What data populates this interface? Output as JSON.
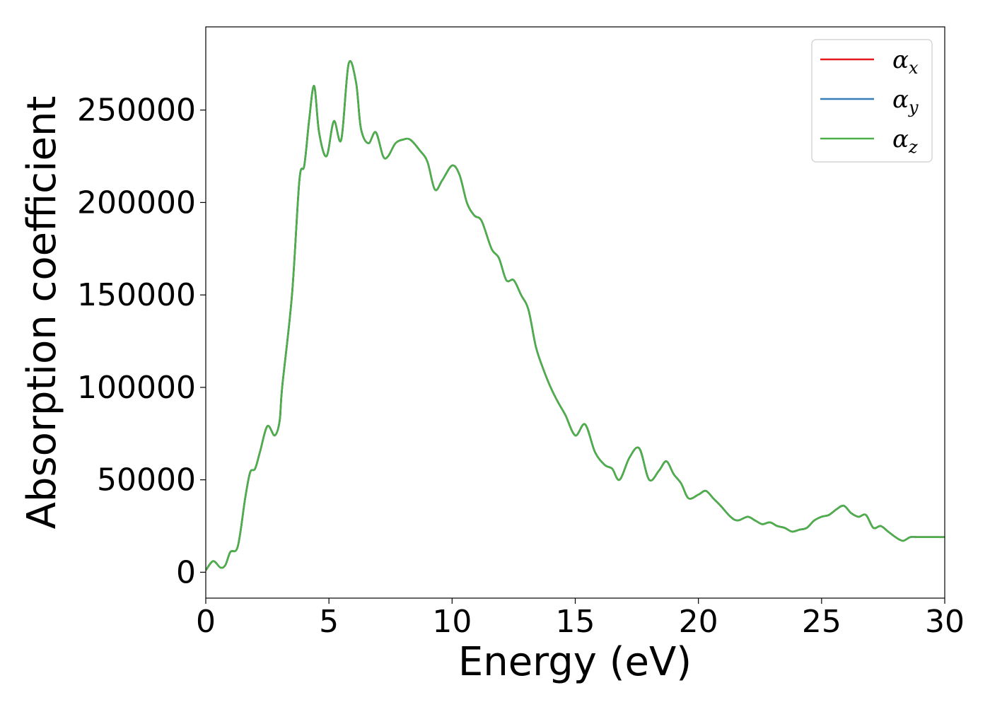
{
  "chart_data": {
    "type": "line",
    "title": "",
    "xlabel": "Energy (eV)",
    "ylabel": "Absorption coefficient",
    "xlim": [
      0,
      30
    ],
    "ylim": [
      -14000,
      295000
    ],
    "grid": false,
    "legend_position": "top-right",
    "x_ticks": [
      {
        "value": 0,
        "label": "0"
      },
      {
        "value": 5,
        "label": "5"
      },
      {
        "value": 10,
        "label": "10"
      },
      {
        "value": 15,
        "label": "15"
      },
      {
        "value": 20,
        "label": "20"
      },
      {
        "value": 25,
        "label": "25"
      },
      {
        "value": 30,
        "label": "30"
      }
    ],
    "y_ticks": [
      {
        "value": 0,
        "label": "0"
      },
      {
        "value": 50000,
        "label": "50000"
      },
      {
        "value": 100000,
        "label": "100000"
      },
      {
        "value": 150000,
        "label": "150000"
      },
      {
        "value": 200000,
        "label": "200000"
      },
      {
        "value": 250000,
        "label": "250000"
      }
    ],
    "x": [
      0,
      0.3,
      0.6,
      0.8,
      1.0,
      1.3,
      1.6,
      1.8,
      2.0,
      2.2,
      2.5,
      2.8,
      3.0,
      3.1,
      3.5,
      3.8,
      4.0,
      4.2,
      4.4,
      4.6,
      4.9,
      5.2,
      5.5,
      5.8,
      6.1,
      6.3,
      6.6,
      6.9,
      7.2,
      7.4,
      7.7,
      8.0,
      8.3,
      8.7,
      9.0,
      9.3,
      9.6,
      10.0,
      10.3,
      10.6,
      10.9,
      11.2,
      11.6,
      11.9,
      12.2,
      12.5,
      12.8,
      13.1,
      13.4,
      13.7,
      14.0,
      14.3,
      14.6,
      15.0,
      15.4,
      15.8,
      16.2,
      16.5,
      16.8,
      17.2,
      17.6,
      18.0,
      18.4,
      18.7,
      19.0,
      19.3,
      19.6,
      20.0,
      20.3,
      20.6,
      20.9,
      21.3,
      21.6,
      22.0,
      22.3,
      22.6,
      22.9,
      23.2,
      23.5,
      23.8,
      24.1,
      24.4,
      24.7,
      25.0,
      25.3,
      25.6,
      25.9,
      26.2,
      26.5,
      26.8,
      27.1,
      27.4,
      27.7,
      28.0,
      28.3,
      28.6,
      28.9,
      29.2,
      29.5,
      29.8,
      30.0
    ],
    "series": [
      {
        "name": "x",
        "color": "#e41a1c",
        "values": [
          1000,
          6000,
          2500,
          4000,
          11000,
          14000,
          40000,
          54000,
          56000,
          65000,
          79000,
          74000,
          82000,
          100000,
          150000,
          212000,
          220000,
          245000,
          263000,
          238000,
          225000,
          244000,
          234000,
          275000,
          265000,
          240000,
          232000,
          238000,
          225000,
          225000,
          232000,
          234000,
          234000,
          228000,
          222000,
          207000,
          212000,
          220000,
          215000,
          200000,
          193000,
          190000,
          175000,
          170000,
          158000,
          158000,
          150000,
          142000,
          122000,
          110000,
          100000,
          92000,
          85000,
          74000,
          80000,
          65000,
          58000,
          56000,
          50000,
          62000,
          67000,
          50000,
          55000,
          60000,
          53000,
          48000,
          40000,
          42000,
          44000,
          40000,
          36000,
          30000,
          28000,
          30000,
          28000,
          26000,
          27000,
          25000,
          24000,
          22000,
          23000,
          24000,
          28000,
          30000,
          31000,
          34000,
          36000,
          32000,
          30000,
          31000,
          24000,
          25000,
          22000,
          19000,
          17000,
          19000,
          19000,
          19000,
          19000,
          19000,
          19000
        ]
      },
      {
        "name": "y",
        "color": "#377eb8",
        "values": [
          1000,
          6000,
          2500,
          4000,
          11000,
          14000,
          40000,
          54000,
          56000,
          65000,
          79000,
          74000,
          82000,
          100000,
          150000,
          212000,
          220000,
          245000,
          263000,
          238000,
          225000,
          244000,
          234000,
          275000,
          265000,
          240000,
          232000,
          238000,
          225000,
          225000,
          232000,
          234000,
          234000,
          228000,
          222000,
          207000,
          212000,
          220000,
          215000,
          200000,
          193000,
          190000,
          175000,
          170000,
          158000,
          158000,
          150000,
          142000,
          122000,
          110000,
          100000,
          92000,
          85000,
          74000,
          80000,
          65000,
          58000,
          56000,
          50000,
          62000,
          67000,
          50000,
          55000,
          60000,
          53000,
          48000,
          40000,
          42000,
          44000,
          40000,
          36000,
          30000,
          28000,
          30000,
          28000,
          26000,
          27000,
          25000,
          24000,
          22000,
          23000,
          24000,
          28000,
          30000,
          31000,
          34000,
          36000,
          32000,
          30000,
          31000,
          24000,
          25000,
          22000,
          19000,
          17000,
          19000,
          19000,
          19000,
          19000,
          19000,
          19000
        ]
      },
      {
        "name": "z",
        "color": "#4daf4a",
        "values": [
          1000,
          6000,
          2500,
          4000,
          11000,
          14000,
          40000,
          54000,
          56000,
          65000,
          79000,
          74000,
          82000,
          100000,
          150000,
          212000,
          220000,
          245000,
          263000,
          238000,
          225000,
          244000,
          234000,
          275000,
          265000,
          240000,
          232000,
          238000,
          225000,
          225000,
          232000,
          234000,
          234000,
          228000,
          222000,
          207000,
          212000,
          220000,
          215000,
          200000,
          193000,
          190000,
          175000,
          170000,
          158000,
          158000,
          150000,
          142000,
          122000,
          110000,
          100000,
          92000,
          85000,
          74000,
          80000,
          65000,
          58000,
          56000,
          50000,
          62000,
          67000,
          50000,
          55000,
          60000,
          53000,
          48000,
          40000,
          42000,
          44000,
          40000,
          36000,
          30000,
          28000,
          30000,
          28000,
          26000,
          27000,
          25000,
          24000,
          22000,
          23000,
          24000,
          28000,
          30000,
          31000,
          34000,
          36000,
          32000,
          30000,
          31000,
          24000,
          25000,
          22000,
          19000,
          17000,
          19000,
          19000,
          19000,
          19000,
          19000,
          19000
        ]
      }
    ]
  },
  "legend": {
    "symbol": "α",
    "entries": [
      {
        "sub": "x",
        "color": "#e41a1c"
      },
      {
        "sub": "y",
        "color": "#377eb8"
      },
      {
        "sub": "z",
        "color": "#4daf4a"
      }
    ]
  }
}
